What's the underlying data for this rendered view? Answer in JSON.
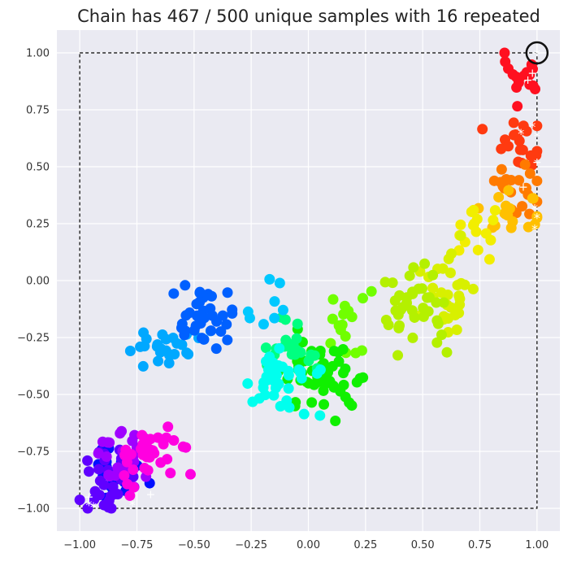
{
  "chart_data": {
    "type": "scatter",
    "title": "Chain has 467 / 500 unique samples with 16 repeated",
    "xlabel": "",
    "ylabel": "",
    "xlim": [
      -1.1,
      1.1
    ],
    "ylim": [
      -1.1,
      1.1
    ],
    "xticks": [
      "−1.00",
      "−0.75",
      "−0.50",
      "−0.25",
      "0.00",
      "0.25",
      "0.50",
      "0.75",
      "1.00"
    ],
    "yticks": [
      "1.00",
      "0.75",
      "0.50",
      "0.25",
      "0.00",
      "−0.25",
      "−0.50",
      "−0.75",
      "−1.00"
    ],
    "xtick_values": [
      -1,
      -0.75,
      -0.5,
      -0.25,
      0,
      0.25,
      0.5,
      0.75,
      1
    ],
    "ytick_values": [
      1,
      0.75,
      0.5,
      0.25,
      0,
      -0.25,
      -0.5,
      -0.75,
      -1
    ],
    "grid": true,
    "background": "#eaeaf2",
    "bounding_box": {
      "xmin": -1,
      "xmax": 1,
      "ymin": -1,
      "ymax": 1,
      "style": "dashed",
      "color": "#000000"
    },
    "colormap": "hsv (sample order: red → yellow → green → cyan → blue → magenta → purple)",
    "clusters": [
      {
        "name": "red",
        "color": "#ff1020",
        "center": [
          0.93,
          0.88
        ],
        "spread": [
          0.05,
          0.07
        ],
        "n": 16
      },
      {
        "name": "red-orange",
        "color": "#ff3a10",
        "center": [
          0.92,
          0.6
        ],
        "spread": [
          0.06,
          0.07
        ],
        "n": 20
      },
      {
        "name": "orange",
        "color": "#ff7a00",
        "center": [
          0.92,
          0.4
        ],
        "spread": [
          0.06,
          0.05
        ],
        "n": 20
      },
      {
        "name": "yellow-orange",
        "color": "#ffc000",
        "center": [
          0.9,
          0.3
        ],
        "spread": [
          0.08,
          0.05
        ],
        "n": 18
      },
      {
        "name": "yellow",
        "color": "#f2ee00",
        "center": [
          0.7,
          0.22
        ],
        "spread": [
          0.07,
          0.05
        ],
        "n": 16
      },
      {
        "name": "yellow-lime",
        "color": "#d8f000",
        "center": [
          0.62,
          -0.05
        ],
        "spread": [
          0.06,
          0.1
        ],
        "n": 30
      },
      {
        "name": "lime",
        "color": "#b4f000",
        "center": [
          0.48,
          -0.12
        ],
        "spread": [
          0.08,
          0.09
        ],
        "n": 38
      },
      {
        "name": "green-lime",
        "color": "#70ff00",
        "center": [
          0.2,
          -0.22
        ],
        "spread": [
          0.07,
          0.07
        ],
        "n": 16
      },
      {
        "name": "green",
        "color": "#10f000",
        "center": [
          0.07,
          -0.42
        ],
        "spread": [
          0.08,
          0.08
        ],
        "n": 48
      },
      {
        "name": "spring-green",
        "color": "#00ff80",
        "center": [
          -0.08,
          -0.3
        ],
        "spread": [
          0.07,
          0.06
        ],
        "n": 22
      },
      {
        "name": "cyan",
        "color": "#00ffee",
        "center": [
          -0.12,
          -0.45
        ],
        "spread": [
          0.08,
          0.07
        ],
        "n": 38
      },
      {
        "name": "cyan-blue",
        "color": "#00c8ff",
        "center": [
          -0.2,
          -0.1
        ],
        "spread": [
          0.05,
          0.05
        ],
        "n": 8
      },
      {
        "name": "sky",
        "color": "#00a8ff",
        "center": [
          -0.65,
          -0.3
        ],
        "spread": [
          0.09,
          0.05
        ],
        "n": 26
      },
      {
        "name": "blue",
        "color": "#0060ff",
        "center": [
          -0.48,
          -0.18
        ],
        "spread": [
          0.08,
          0.08
        ],
        "n": 36
      },
      {
        "name": "deep-blue",
        "color": "#0010ff",
        "center": [
          -0.82,
          -0.85
        ],
        "spread": [
          0.05,
          0.08
        ],
        "n": 18
      },
      {
        "name": "violet",
        "color": "#6000ff",
        "center": [
          -0.88,
          -0.88
        ],
        "spread": [
          0.07,
          0.07
        ],
        "n": 28
      },
      {
        "name": "purple",
        "color": "#a000ff",
        "center": [
          -0.82,
          -0.76
        ],
        "spread": [
          0.07,
          0.07
        ],
        "n": 24
      },
      {
        "name": "magenta",
        "color": "#ff00e0",
        "center": [
          -0.7,
          -0.78
        ],
        "spread": [
          0.08,
          0.07
        ],
        "n": 34
      }
    ],
    "repeated_markers": [
      {
        "x": 1.0,
        "y": 1.0,
        "mark": "*"
      },
      {
        "x": 0.98,
        "y": 0.91,
        "mark": "+"
      },
      {
        "x": 0.96,
        "y": 0.88,
        "mark": "+"
      },
      {
        "x": 0.98,
        "y": 0.68,
        "mark": "*"
      },
      {
        "x": 1.0,
        "y": 0.64,
        "mark": "*"
      },
      {
        "x": 0.93,
        "y": 0.65,
        "mark": "*"
      },
      {
        "x": 1.0,
        "y": 0.52,
        "mark": "+"
      },
      {
        "x": 0.94,
        "y": 0.41,
        "mark": "+"
      },
      {
        "x": 0.99,
        "y": 0.32,
        "mark": "*"
      },
      {
        "x": 1.0,
        "y": 0.28,
        "mark": "*"
      },
      {
        "x": 0.99,
        "y": 0.23,
        "mark": "*"
      },
      {
        "x": -0.69,
        "y": -0.94,
        "mark": "+"
      },
      {
        "x": -0.77,
        "y": -0.98,
        "mark": "*"
      },
      {
        "x": -0.96,
        "y": -0.98,
        "mark": "*"
      },
      {
        "x": -0.94,
        "y": -0.99,
        "mark": "*"
      },
      {
        "x": -0.96,
        "y": -0.95,
        "mark": "+"
      }
    ],
    "highlight": {
      "x": 1.0,
      "y": 1.0,
      "shape": "ring",
      "color": "#111111"
    }
  }
}
